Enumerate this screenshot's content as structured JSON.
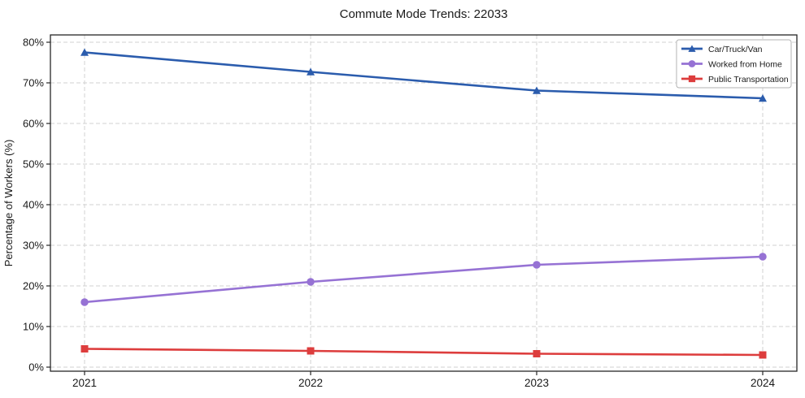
{
  "chart_data": {
    "type": "line",
    "title": "Commute Mode Trends: 22033",
    "xlabel": "",
    "ylabel": "Percentage of Workers (%)",
    "categories": [
      "2021",
      "2022",
      "2023",
      "2024"
    ],
    "y_ticks": [
      "0%",
      "10%",
      "20%",
      "30%",
      "40%",
      "50%",
      "60%",
      "70%",
      "80%"
    ],
    "y_tick_values": [
      0,
      10,
      20,
      30,
      40,
      50,
      60,
      70,
      80
    ],
    "ylim": [
      0,
      80
    ],
    "grid": true,
    "grid_style": "dashed",
    "legend_position": "top-right",
    "series": [
      {
        "name": "Car/Truck/Van",
        "marker": "triangle",
        "color": "#2b5cad",
        "values": [
          77.5,
          72.7,
          68.1,
          66.2
        ]
      },
      {
        "name": "Worked from Home",
        "marker": "circle",
        "color": "#9672d4",
        "values": [
          16.0,
          21.0,
          25.2,
          27.2
        ]
      },
      {
        "name": "Public Transportation",
        "marker": "square",
        "color": "#dd3d3d",
        "values": [
          4.5,
          4.0,
          3.3,
          3.0
        ]
      }
    ],
    "colors": {
      "grid": "#d2d2d2",
      "frame": "#262626",
      "tick": "#262626",
      "text": "#1a1a1a",
      "legend_border": "#b3b3b3",
      "background": "#ffffff"
    }
  }
}
